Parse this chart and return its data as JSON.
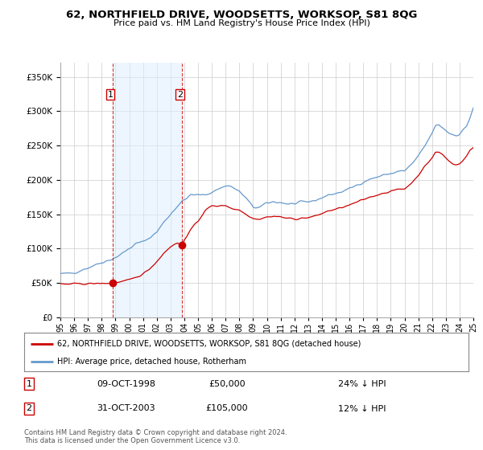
{
  "title": "62, NORTHFIELD DRIVE, WOODSETTS, WORKSOP, S81 8QG",
  "subtitle": "Price paid vs. HM Land Registry's House Price Index (HPI)",
  "legend_line1": "62, NORTHFIELD DRIVE, WOODSETTS, WORKSOP, S81 8QG (detached house)",
  "legend_line2": "HPI: Average price, detached house, Rotherham",
  "footer": "Contains HM Land Registry data © Crown copyright and database right 2024.\nThis data is licensed under the Open Government Licence v3.0.",
  "sale1_label": "1",
  "sale1_date": "09-OCT-1998",
  "sale1_price": "£50,000",
  "sale1_hpi": "24% ↓ HPI",
  "sale1_year": 1998.78,
  "sale1_value": 50000,
  "sale2_label": "2",
  "sale2_date": "31-OCT-2003",
  "sale2_price": "£105,000",
  "sale2_hpi": "12% ↓ HPI",
  "sale2_year": 2003.83,
  "sale2_value": 105000,
  "red_color": "#cc0000",
  "blue_color": "#6699cc",
  "blue_fill": "#ddeeff",
  "vline_color": "#cc0000",
  "grid_color": "#cccccc",
  "background_color": "#ffffff",
  "ylim": [
    0,
    370000
  ],
  "yticks": [
    0,
    50000,
    100000,
    150000,
    200000,
    250000,
    300000,
    350000
  ],
  "xlim_start": 1995,
  "xlim_end": 2025
}
